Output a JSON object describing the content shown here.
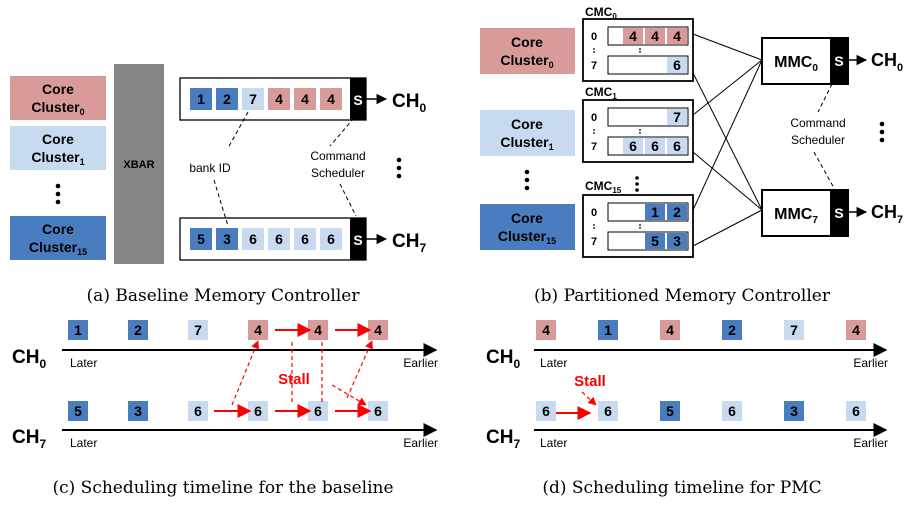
{
  "colors": {
    "red": "#d99a9a",
    "light_blue": "#c8daf0",
    "dark_blue": "#4a7dc0",
    "xbar_gray": "#858585",
    "scheduler_black": "#000000",
    "stall_red": "#ff0000"
  },
  "baseline": {
    "core_cluster_label": "Core",
    "cluster_word": "Cluster",
    "cluster_subs": [
      "0",
      "1",
      "15"
    ],
    "xbar_label": "XBAR",
    "queue_top": [
      "1",
      "2",
      "7",
      "4",
      "4",
      "4"
    ],
    "queue_bottom": [
      "5",
      "3",
      "6",
      "6",
      "6",
      "6"
    ],
    "scheduler_label": "S",
    "channel_base": "CH",
    "channel_subs": [
      "0",
      "7"
    ],
    "bank_id_label": "bank ID",
    "command_label": "Command",
    "scheduler_word": "Scheduler",
    "caption": "(a) Baseline Memory Controller"
  },
  "partitioned": {
    "cmc_base": "CMC",
    "cmc_subs": [
      "0",
      "1",
      "15"
    ],
    "row_labels": [
      "0",
      "7"
    ],
    "cmc0_row0": [
      "4",
      "4",
      "4"
    ],
    "cmc0_row7": [
      "6"
    ],
    "cmc1_row0": [
      "7"
    ],
    "cmc1_row7": [
      "6",
      "6",
      "6"
    ],
    "cmc15_row0": [
      "1",
      "2"
    ],
    "cmc15_row7": [
      "5",
      "3"
    ],
    "mmc_base": "MMC",
    "mmc_subs": [
      "0",
      "7"
    ],
    "caption": "(b) Partitioned Memory Controller"
  },
  "timeline_c": {
    "ch0": [
      "1",
      "2",
      "7",
      "4",
      "4",
      "4"
    ],
    "ch7": [
      "5",
      "3",
      "6",
      "6",
      "6",
      "6"
    ],
    "later": "Later",
    "earlier": "Earlier",
    "stall": "Stall",
    "caption": "(c) Scheduling timeline for the baseline"
  },
  "timeline_d": {
    "ch0": [
      "4",
      "1",
      "4",
      "2",
      "7",
      "4"
    ],
    "ch7": [
      "6",
      "6",
      "5",
      "6",
      "3",
      "6"
    ],
    "later": "Later",
    "earlier": "Earlier",
    "stall": "Stall",
    "caption": "(d) Scheduling timeline for PMC"
  }
}
